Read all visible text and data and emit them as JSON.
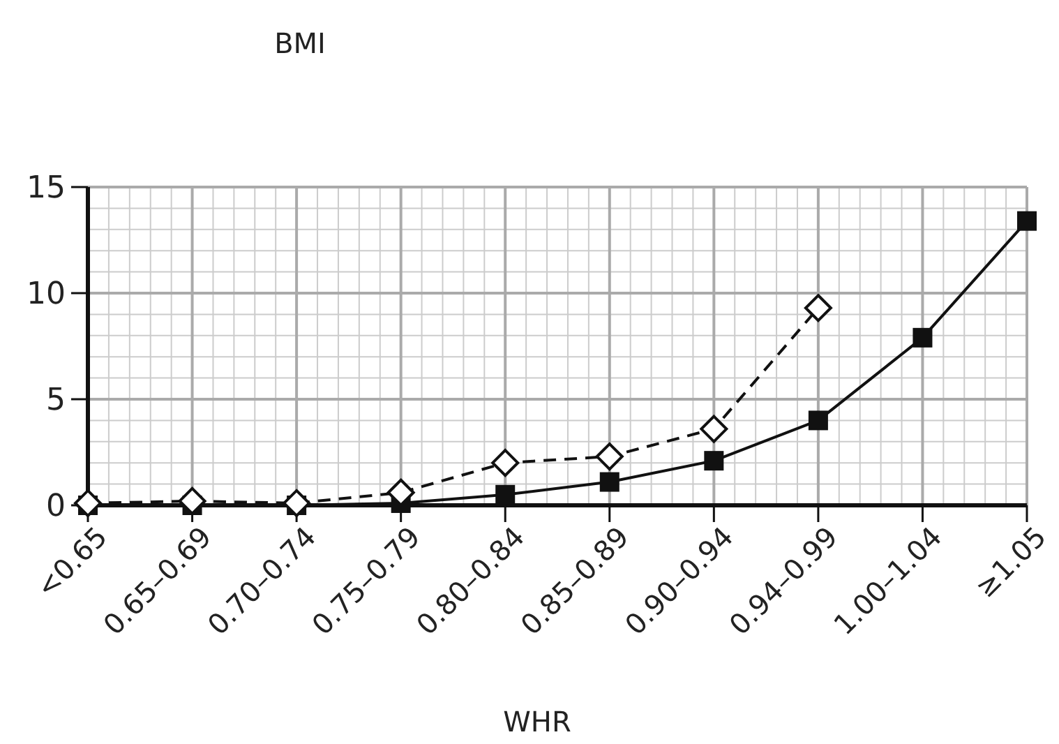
{
  "chart_data": {
    "type": "line",
    "ylabel": "BMI",
    "xlabel": "WHR",
    "categories": [
      "<0.65",
      "0.65–0.69",
      "0.70–0.74",
      "0.75–0.79",
      "0.80–0.84",
      "0.85–0.89",
      "0.90–0.94",
      "0.94–0.99",
      "1.00–1.04",
      "≥1.05"
    ],
    "series": [
      {
        "color": "#111111",
        "marker": "square",
        "line_style": "solid",
        "values": [
          0,
          0,
          0,
          0.1,
          0.5,
          1.1,
          2.1,
          4.0,
          7.9,
          13.4
        ]
      },
      {
        "color": "#111111",
        "marker": "diamond",
        "line_style": "dashed",
        "values": [
          0.1,
          0.2,
          0.1,
          0.6,
          2.0,
          2.3,
          3.6,
          9.3,
          null,
          null
        ]
      }
    ],
    "ylim": [
      0,
      15
    ],
    "yticks": [
      0,
      5,
      10,
      15
    ],
    "grid": true
  }
}
